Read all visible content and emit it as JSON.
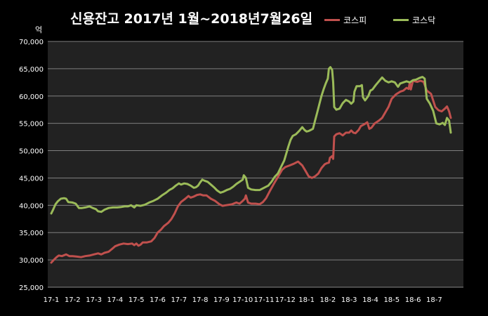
{
  "chart_data": {
    "type": "line",
    "title": "신용잔고 2017년 1월~2018년7월26일",
    "y_unit": "억",
    "ylim": [
      25000,
      70000
    ],
    "y_ticks": [
      "25,000",
      "30,000",
      "35,000",
      "40,000",
      "45,000",
      "50,000",
      "55,000",
      "60,000",
      "65,000",
      "70,000"
    ],
    "y_tick_values": [
      25000,
      30000,
      35000,
      40000,
      45000,
      50000,
      55000,
      60000,
      65000,
      70000
    ],
    "x_labels": [
      "17-1",
      "17-2",
      "17-3",
      "17-4",
      "17-5",
      "17-6",
      "17-7",
      "17-8",
      "17-9",
      "17-10",
      "17-11",
      "17-12",
      "18-1",
      "18-2",
      "18-3",
      "18-4",
      "18-5",
      "18-6",
      "18-7"
    ],
    "grid": "horizontal",
    "legend": "top-right",
    "series": [
      {
        "name": "코스피",
        "color": "#c0504d",
        "points": [
          [
            0,
            29500
          ],
          [
            0.12,
            30000
          ],
          [
            0.25,
            30500
          ],
          [
            0.35,
            30800
          ],
          [
            0.5,
            30700
          ],
          [
            0.7,
            31000
          ],
          [
            0.85,
            30700
          ],
          [
            1.0,
            30700
          ],
          [
            1.2,
            30600
          ],
          [
            1.4,
            30500
          ],
          [
            1.6,
            30700
          ],
          [
            1.8,
            30800
          ],
          [
            2.0,
            31000
          ],
          [
            2.2,
            31200
          ],
          [
            2.35,
            31000
          ],
          [
            2.5,
            31300
          ],
          [
            2.7,
            31500
          ],
          [
            2.85,
            32000
          ],
          [
            3.0,
            32500
          ],
          [
            3.2,
            32800
          ],
          [
            3.4,
            33000
          ],
          [
            3.6,
            32900
          ],
          [
            3.8,
            33000
          ],
          [
            3.9,
            32700
          ],
          [
            4.0,
            33000
          ],
          [
            4.1,
            32600
          ],
          [
            4.2,
            32800
          ],
          [
            4.3,
            33200
          ],
          [
            4.5,
            33200
          ],
          [
            4.7,
            33400
          ],
          [
            4.85,
            34000
          ],
          [
            5.0,
            35000
          ],
          [
            5.15,
            35500
          ],
          [
            5.3,
            36200
          ],
          [
            5.5,
            36800
          ],
          [
            5.65,
            37500
          ],
          [
            5.8,
            38500
          ],
          [
            5.95,
            39800
          ],
          [
            6.1,
            40600
          ],
          [
            6.3,
            41200
          ],
          [
            6.45,
            41700
          ],
          [
            6.55,
            41400
          ],
          [
            6.7,
            41600
          ],
          [
            6.85,
            41900
          ],
          [
            7.0,
            42000
          ],
          [
            7.15,
            41800
          ],
          [
            7.3,
            41800
          ],
          [
            7.5,
            41200
          ],
          [
            7.7,
            40800
          ],
          [
            7.9,
            40200
          ],
          [
            8.05,
            39900
          ],
          [
            8.2,
            40000
          ],
          [
            8.35,
            40100
          ],
          [
            8.5,
            40200
          ],
          [
            8.7,
            40500
          ],
          [
            8.85,
            40300
          ],
          [
            9.0,
            40800
          ],
          [
            9.1,
            41200
          ],
          [
            9.15,
            41800
          ],
          [
            9.25,
            40500
          ],
          [
            9.4,
            40300
          ],
          [
            9.6,
            40300
          ],
          [
            9.8,
            40200
          ],
          [
            9.95,
            40600
          ],
          [
            10.1,
            41300
          ],
          [
            10.3,
            42800
          ],
          [
            10.5,
            44200
          ],
          [
            10.7,
            45500
          ],
          [
            10.85,
            46500
          ],
          [
            11.0,
            47000
          ],
          [
            11.2,
            47300
          ],
          [
            11.4,
            47600
          ],
          [
            11.6,
            48000
          ],
          [
            11.8,
            47300
          ],
          [
            11.95,
            46300
          ],
          [
            12.1,
            45300
          ],
          [
            12.25,
            45000
          ],
          [
            12.4,
            45300
          ],
          [
            12.55,
            45800
          ],
          [
            12.7,
            46800
          ],
          [
            12.85,
            47500
          ],
          [
            12.95,
            47700
          ],
          [
            13.05,
            47800
          ],
          [
            13.1,
            48700
          ],
          [
            13.2,
            49000
          ],
          [
            13.25,
            48500
          ],
          [
            13.3,
            52600
          ],
          [
            13.4,
            53000
          ],
          [
            13.55,
            53200
          ],
          [
            13.7,
            52800
          ],
          [
            13.85,
            53300
          ],
          [
            14.0,
            53300
          ],
          [
            14.1,
            53700
          ],
          [
            14.2,
            53300
          ],
          [
            14.3,
            53200
          ],
          [
            14.45,
            53800
          ],
          [
            14.55,
            54500
          ],
          [
            14.7,
            54800
          ],
          [
            14.85,
            55200
          ],
          [
            14.95,
            54000
          ],
          [
            15.05,
            54200
          ],
          [
            15.2,
            55000
          ],
          [
            15.4,
            55500
          ],
          [
            15.55,
            56000
          ],
          [
            15.7,
            57000
          ],
          [
            15.85,
            58000
          ],
          [
            16.0,
            59500
          ],
          [
            16.2,
            60300
          ],
          [
            16.4,
            60800
          ],
          [
            16.55,
            61000
          ],
          [
            16.7,
            61500
          ],
          [
            16.8,
            61300
          ],
          [
            16.85,
            62500
          ],
          [
            16.9,
            61200
          ],
          [
            17.0,
            62800
          ],
          [
            17.2,
            62600
          ],
          [
            17.35,
            62800
          ],
          [
            17.5,
            62600
          ],
          [
            17.65,
            61000
          ],
          [
            17.75,
            60700
          ],
          [
            17.85,
            60400
          ],
          [
            17.95,
            59200
          ],
          [
            18.05,
            58000
          ],
          [
            18.2,
            57400
          ],
          [
            18.35,
            57200
          ],
          [
            18.5,
            57700
          ],
          [
            18.6,
            58100
          ],
          [
            18.7,
            57200
          ],
          [
            18.78,
            56000
          ]
        ]
      },
      {
        "name": "코스닥",
        "color": "#9bbb59",
        "points": [
          [
            0,
            38500
          ],
          [
            0.1,
            39300
          ],
          [
            0.2,
            40200
          ],
          [
            0.3,
            40700
          ],
          [
            0.45,
            41200
          ],
          [
            0.6,
            41300
          ],
          [
            0.7,
            41200
          ],
          [
            0.8,
            40600
          ],
          [
            1.0,
            40500
          ],
          [
            1.15,
            40300
          ],
          [
            1.3,
            39500
          ],
          [
            1.45,
            39500
          ],
          [
            1.6,
            39600
          ],
          [
            1.8,
            39800
          ],
          [
            1.95,
            39500
          ],
          [
            2.1,
            39300
          ],
          [
            2.2,
            38900
          ],
          [
            2.35,
            38800
          ],
          [
            2.5,
            39200
          ],
          [
            2.7,
            39500
          ],
          [
            2.9,
            39600
          ],
          [
            3.1,
            39600
          ],
          [
            3.3,
            39700
          ],
          [
            3.45,
            39800
          ],
          [
            3.6,
            39800
          ],
          [
            3.75,
            40000
          ],
          [
            3.9,
            39600
          ],
          [
            4.0,
            40000
          ],
          [
            4.2,
            39900
          ],
          [
            4.4,
            40100
          ],
          [
            4.6,
            40500
          ],
          [
            4.8,
            40800
          ],
          [
            5.0,
            41200
          ],
          [
            5.2,
            41800
          ],
          [
            5.4,
            42300
          ],
          [
            5.55,
            42800
          ],
          [
            5.7,
            43100
          ],
          [
            5.85,
            43600
          ],
          [
            6.0,
            44000
          ],
          [
            6.1,
            43800
          ],
          [
            6.25,
            44000
          ],
          [
            6.4,
            43900
          ],
          [
            6.55,
            43600
          ],
          [
            6.7,
            43200
          ],
          [
            6.8,
            43300
          ],
          [
            6.9,
            43600
          ],
          [
            7.0,
            44200
          ],
          [
            7.1,
            44700
          ],
          [
            7.2,
            44500
          ],
          [
            7.35,
            44300
          ],
          [
            7.5,
            43800
          ],
          [
            7.65,
            43300
          ],
          [
            7.8,
            42700
          ],
          [
            7.95,
            42300
          ],
          [
            8.1,
            42500
          ],
          [
            8.25,
            42800
          ],
          [
            8.4,
            43000
          ],
          [
            8.55,
            43400
          ],
          [
            8.7,
            43900
          ],
          [
            8.85,
            44300
          ],
          [
            9.0,
            44700
          ],
          [
            9.05,
            45500
          ],
          [
            9.15,
            45000
          ],
          [
            9.25,
            43200
          ],
          [
            9.4,
            42900
          ],
          [
            9.6,
            42800
          ],
          [
            9.8,
            42800
          ],
          [
            10.0,
            43200
          ],
          [
            10.2,
            43600
          ],
          [
            10.35,
            44300
          ],
          [
            10.5,
            45200
          ],
          [
            10.65,
            45800
          ],
          [
            10.8,
            47000
          ],
          [
            10.95,
            48200
          ],
          [
            11.05,
            49500
          ],
          [
            11.15,
            50800
          ],
          [
            11.25,
            52000
          ],
          [
            11.35,
            52700
          ],
          [
            11.5,
            53000
          ],
          [
            11.65,
            53600
          ],
          [
            11.8,
            54300
          ],
          [
            11.9,
            53800
          ],
          [
            12.0,
            53500
          ],
          [
            12.1,
            53600
          ],
          [
            12.2,
            53800
          ],
          [
            12.3,
            54000
          ],
          [
            12.4,
            55500
          ],
          [
            12.5,
            57000
          ],
          [
            12.6,
            58500
          ],
          [
            12.7,
            60000
          ],
          [
            12.8,
            61200
          ],
          [
            12.9,
            62300
          ],
          [
            13.0,
            63200
          ],
          [
            13.05,
            65000
          ],
          [
            13.12,
            65300
          ],
          [
            13.2,
            64800
          ],
          [
            13.25,
            62500
          ],
          [
            13.3,
            58000
          ],
          [
            13.4,
            57500
          ],
          [
            13.55,
            57700
          ],
          [
            13.7,
            58700
          ],
          [
            13.85,
            59300
          ],
          [
            14.0,
            59000
          ],
          [
            14.1,
            58600
          ],
          [
            14.2,
            59000
          ],
          [
            14.25,
            60800
          ],
          [
            14.35,
            61800
          ],
          [
            14.5,
            61800
          ],
          [
            14.6,
            62000
          ],
          [
            14.65,
            59800
          ],
          [
            14.75,
            59200
          ],
          [
            14.9,
            60000
          ],
          [
            15.0,
            61000
          ],
          [
            15.1,
            61200
          ],
          [
            15.25,
            62000
          ],
          [
            15.4,
            62700
          ],
          [
            15.55,
            63400
          ],
          [
            15.7,
            62800
          ],
          [
            15.85,
            62500
          ],
          [
            16.0,
            62700
          ],
          [
            16.15,
            62500
          ],
          [
            16.3,
            61700
          ],
          [
            16.4,
            62300
          ],
          [
            16.55,
            62500
          ],
          [
            16.7,
            62700
          ],
          [
            16.85,
            62500
          ],
          [
            17.0,
            62900
          ],
          [
            17.15,
            63000
          ],
          [
            17.3,
            63300
          ],
          [
            17.45,
            63500
          ],
          [
            17.55,
            63200
          ],
          [
            17.65,
            59500
          ],
          [
            17.8,
            58600
          ],
          [
            17.95,
            57300
          ],
          [
            18.1,
            55000
          ],
          [
            18.25,
            54800
          ],
          [
            18.4,
            55100
          ],
          [
            18.5,
            54700
          ],
          [
            18.6,
            56000
          ],
          [
            18.7,
            55500
          ],
          [
            18.78,
            53300
          ]
        ]
      }
    ]
  }
}
